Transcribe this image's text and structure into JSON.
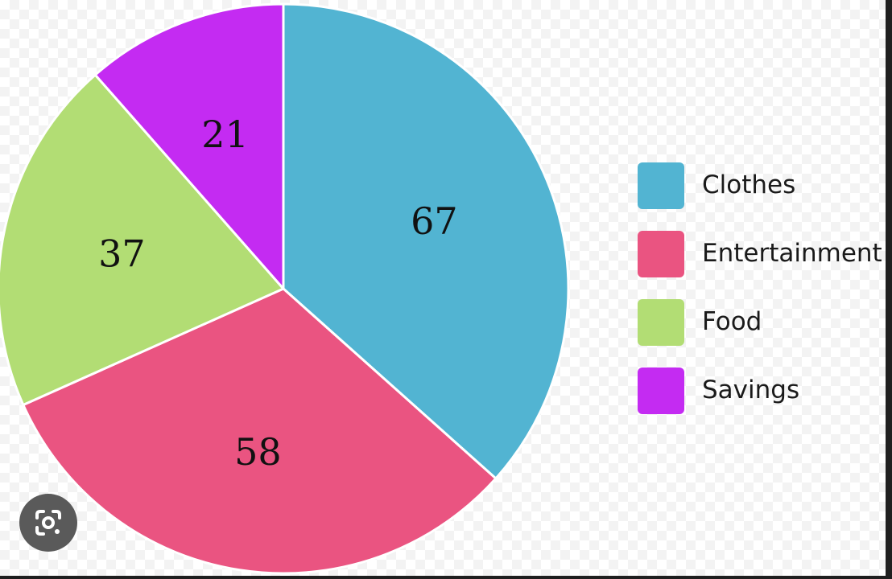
{
  "chart_data": {
    "type": "pie",
    "categories": [
      "Clothes",
      "Entertainment",
      "Food",
      "Savings"
    ],
    "values": [
      67,
      58,
      37,
      21
    ],
    "colors": [
      "#52b4d2",
      "#ea5481",
      "#b2dd74",
      "#c42bf2"
    ],
    "legend_position": "right",
    "title": ""
  },
  "overlay": {
    "icon": "google-lens-icon"
  }
}
